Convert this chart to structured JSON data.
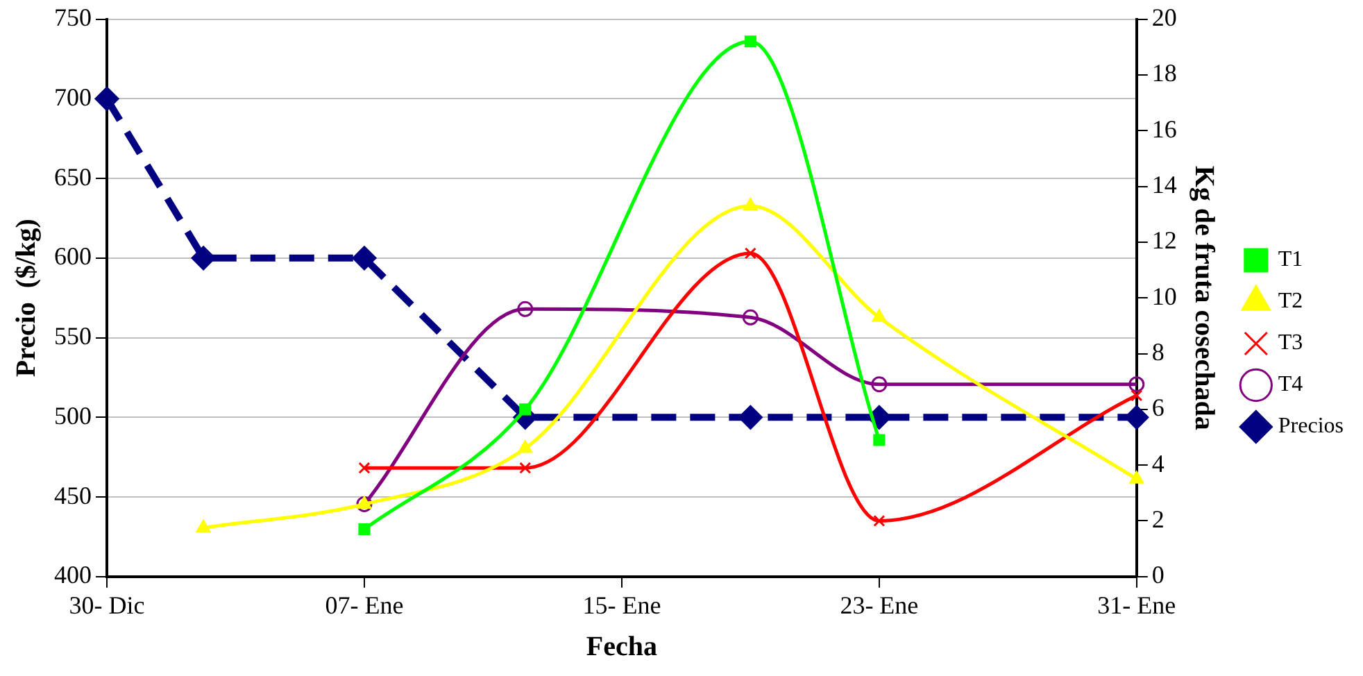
{
  "chart_data": {
    "type": "line",
    "xlabel": "Fecha",
    "ylabel": "Precio  ($/kg)",
    "y2label": "Kg de fruta cosechada",
    "categories": [
      "30- Dic",
      null,
      null,
      null,
      null,
      null,
      null,
      null,
      "07- Ene",
      null,
      null,
      null,
      null,
      null,
      null,
      null,
      "15- Ene",
      null,
      null,
      null,
      null,
      null,
      null,
      null,
      "23- Ene",
      null,
      null,
      null,
      null,
      null,
      null,
      null,
      "31- Ene"
    ],
    "ylim": [
      400,
      750
    ],
    "yticks": [
      400,
      450,
      500,
      550,
      600,
      650,
      700,
      750
    ],
    "y2lim": [
      0,
      20
    ],
    "y2ticks": [
      0,
      2,
      4,
      6,
      8,
      10,
      12,
      14,
      16,
      18,
      20
    ],
    "grid": "y",
    "legend": "right",
    "series": [
      {
        "name": "Precios",
        "color": "#000080",
        "marker": "diamond",
        "line_style": "dashed",
        "values": [
          700,
          null,
          null,
          600,
          null,
          null,
          null,
          null,
          600,
          null,
          null,
          null,
          null,
          500,
          null,
          null,
          null,
          null,
          null,
          null,
          500,
          null,
          null,
          null,
          500,
          null,
          null,
          null,
          null,
          null,
          null,
          null,
          500
        ]
      },
      {
        "name": "T1",
        "color": "#00ff00",
        "marker": "square",
        "axis": "y2",
        "values": [
          null,
          null,
          null,
          null,
          null,
          null,
          null,
          null,
          1.7,
          null,
          null,
          null,
          null,
          6.0,
          null,
          null,
          null,
          null,
          null,
          null,
          19.2,
          null,
          null,
          null,
          4.9,
          null,
          null,
          null,
          null,
          null,
          null,
          null,
          null
        ]
      },
      {
        "name": "T2",
        "color": "#ffff00",
        "marker": "triangle",
        "axis": "y2",
        "values": [
          null,
          null,
          null,
          1.75,
          null,
          null,
          null,
          null,
          2.6,
          null,
          null,
          null,
          null,
          4.6,
          null,
          null,
          null,
          null,
          null,
          null,
          13.3,
          null,
          null,
          null,
          9.3,
          null,
          null,
          null,
          null,
          null,
          null,
          null,
          3.5
        ]
      },
      {
        "name": "T3",
        "color": "#ff0000",
        "marker": "cross",
        "axis": "y2",
        "values": [
          null,
          null,
          null,
          null,
          null,
          null,
          null,
          null,
          3.9,
          null,
          null,
          null,
          null,
          3.9,
          null,
          null,
          null,
          null,
          null,
          null,
          11.6,
          null,
          null,
          null,
          2.0,
          null,
          null,
          null,
          null,
          null,
          null,
          null,
          6.5
        ]
      },
      {
        "name": "T4",
        "color": "#800080",
        "marker": "circle",
        "axis": "y2",
        "values": [
          null,
          null,
          null,
          null,
          null,
          null,
          null,
          null,
          2.6,
          null,
          null,
          null,
          null,
          9.6,
          null,
          null,
          null,
          null,
          null,
          null,
          9.3,
          null,
          null,
          null,
          6.9,
          null,
          null,
          null,
          null,
          null,
          null,
          null,
          6.9
        ]
      }
    ]
  }
}
